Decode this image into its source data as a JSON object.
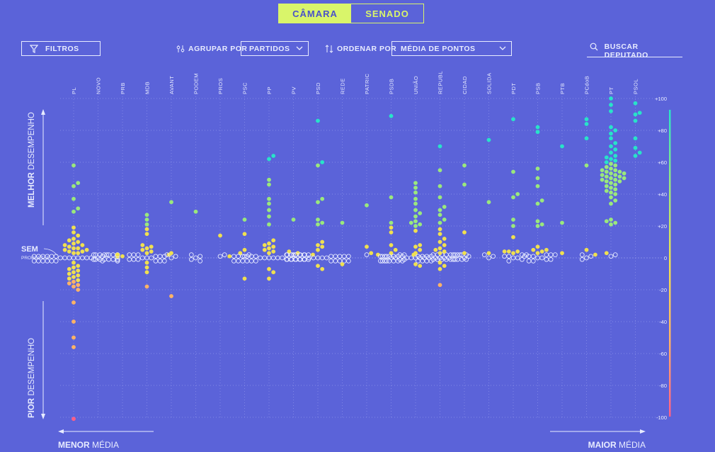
{
  "tabs": [
    {
      "label": "CÂMARA",
      "active": true
    },
    {
      "label": "SENADO",
      "active": false
    }
  ],
  "controls": {
    "filters_label": "FILTROS",
    "group_label": "AGRUPAR POR",
    "group_value": "PARTIDOS",
    "order_label": "ORDENAR POR",
    "order_value": "MÉDIA DE PONTOS",
    "search_label": "BUSCAR DEPUTADO"
  },
  "annotations": {
    "better_bold": "MELHOR",
    "better_rest": " DESEMPENHO",
    "worse_bold": "PIOR",
    "worse_rest": " DESEMPENHO",
    "no_props_bold": "SEM",
    "no_props_rest": "PROPOSTAS",
    "lower_bold": "MENOR",
    "lower_rest": " MÉDIA",
    "higher_bold": "MAIOR",
    "higher_rest": " MÉDIA"
  },
  "colors": {
    "background": "#5b63d9",
    "accent": "#d9f56a",
    "high": "#28e3c9",
    "mid_high": "#9ae87d",
    "neutral": "#f0e050",
    "low": "#ffb366",
    "very_low": "#ff5e88",
    "no_proposals_stroke": "#e8ecff"
  },
  "chart_data": {
    "type": "scatter",
    "title": "",
    "xlabel": "",
    "ylabel": "",
    "ylim": [
      -100,
      100
    ],
    "y_ticks": [
      "+100",
      "+80",
      "+60",
      "+40",
      "+20",
      "0",
      "-20",
      "-40",
      "-60",
      "-80",
      "-100"
    ],
    "y_tick_values": [
      100,
      80,
      60,
      40,
      20,
      0,
      -20,
      -40,
      -60,
      -80,
      -100
    ],
    "categories": [
      "PL",
      "NOVO",
      "PRB",
      "MDB",
      "AVANT",
      "PODEM",
      "PROS",
      "PSC",
      "PP",
      "PV",
      "PSD",
      "REDE",
      "PATRIC",
      "PSDB",
      "UNIÃO",
      "REPUBL",
      "CIDAD",
      "SOLIDA",
      "PDT",
      "PSB",
      "PTB",
      "PCdoB",
      "PT",
      "PSOL"
    ],
    "series": [
      {
        "party": "PL",
        "scores": [
          58,
          47,
          45,
          37,
          31,
          29,
          19,
          16,
          14,
          12,
          11,
          10,
          9,
          8,
          8,
          7,
          6,
          6,
          5,
          5,
          4,
          4,
          3,
          3,
          2,
          2,
          1,
          1,
          -3,
          -5,
          -6,
          -7,
          -8,
          -9,
          -10,
          -11,
          -12,
          -13,
          -14,
          -15,
          -16,
          -17,
          -18,
          -20,
          -28,
          -40,
          -50,
          -56,
          -101
        ],
        "no_proposals": 40
      },
      {
        "party": "NOVO",
        "scores": [],
        "no_proposals": 6
      },
      {
        "party": "PRB",
        "scores": [
          1
        ],
        "no_proposals": 0
      },
      {
        "party": "MDB",
        "scores": [
          27,
          24,
          21,
          18,
          15,
          8,
          7,
          6,
          5,
          4,
          3,
          2,
          -3,
          -6,
          -9,
          -18
        ],
        "no_proposals": 15
      },
      {
        "party": "AVANT",
        "scores": [
          35,
          3,
          -24
        ],
        "no_proposals": 3
      },
      {
        "party": "PODEM",
        "scores": [
          29
        ],
        "no_proposals": 5
      },
      {
        "party": "PROS",
        "scores": [
          14
        ],
        "no_proposals": 2
      },
      {
        "party": "PSC",
        "scores": [
          24,
          15,
          5,
          3,
          -13
        ],
        "no_proposals": 2
      },
      {
        "party": "PP",
        "scores": [
          64,
          62,
          49,
          46,
          37,
          34,
          30,
          26,
          21,
          11,
          9,
          8,
          7,
          6,
          5,
          4,
          3,
          2,
          1,
          -7,
          -9,
          -13
        ],
        "no_proposals": 30
      },
      {
        "party": "PV",
        "scores": [
          24,
          4,
          3
        ],
        "no_proposals": 1
      },
      {
        "party": "PSD",
        "scores": [
          86,
          60,
          58,
          37,
          35,
          24,
          22,
          21,
          10,
          8,
          7,
          5,
          -5,
          -7
        ],
        "no_proposals": 25
      },
      {
        "party": "REDE",
        "scores": [
          22,
          -4
        ],
        "no_proposals": 0
      },
      {
        "party": "PATRIC",
        "scores": [
          33,
          7,
          3
        ],
        "no_proposals": 1
      },
      {
        "party": "PSDB",
        "scores": [
          89,
          38,
          22,
          19,
          16,
          8,
          5,
          3,
          2
        ],
        "no_proposals": 10
      },
      {
        "party": "UNIÃO",
        "scores": [
          47,
          44,
          41,
          37,
          34,
          30,
          28,
          26,
          23,
          22,
          21,
          20,
          17,
          8,
          7,
          5,
          3,
          -4,
          -5
        ],
        "no_proposals": 30
      },
      {
        "party": "REPUBL",
        "scores": [
          70,
          55,
          45,
          38,
          32,
          30,
          27,
          24,
          22,
          18,
          15,
          12,
          10,
          8,
          6,
          5,
          4,
          3,
          2,
          -3,
          -5,
          -7,
          -17
        ],
        "no_proposals": 20
      },
      {
        "party": "CIDAD",
        "scores": [
          58,
          46,
          16,
          3
        ],
        "no_proposals": 3
      },
      {
        "party": "SOLIDA",
        "scores": [
          74,
          35,
          3
        ],
        "no_proposals": 3
      },
      {
        "party": "PDT",
        "scores": [
          87,
          54,
          40,
          38,
          24,
          20,
          13,
          4,
          4,
          4,
          3
        ],
        "no_proposals": 8
      },
      {
        "party": "PSB",
        "scores": [
          82,
          79,
          56,
          50,
          45,
          36,
          34,
          23,
          21,
          20,
          7,
          5,
          5,
          4,
          3
        ],
        "no_proposals": 12
      },
      {
        "party": "PTB",
        "scores": [
          70,
          22,
          3
        ],
        "no_proposals": 0
      },
      {
        "party": "PCdoB",
        "scores": [
          87,
          84,
          75,
          58,
          5,
          2
        ],
        "no_proposals": 4
      },
      {
        "party": "PT",
        "scores": [
          100,
          96,
          92,
          82,
          80,
          78,
          75,
          72,
          70,
          68,
          66,
          64,
          63,
          62,
          61,
          60,
          59,
          58,
          57,
          56,
          55,
          55,
          54,
          54,
          53,
          53,
          52,
          52,
          51,
          51,
          50,
          50,
          49,
          49,
          48,
          48,
          47,
          46,
          45,
          44,
          43,
          42,
          41,
          40,
          38,
          36,
          34,
          24,
          23,
          22,
          21,
          3
        ],
        "no_proposals": 2
      },
      {
        "party": "PSOL",
        "scores": [
          97,
          91,
          90,
          86,
          75,
          69,
          66,
          64
        ],
        "no_proposals": 0
      }
    ]
  }
}
